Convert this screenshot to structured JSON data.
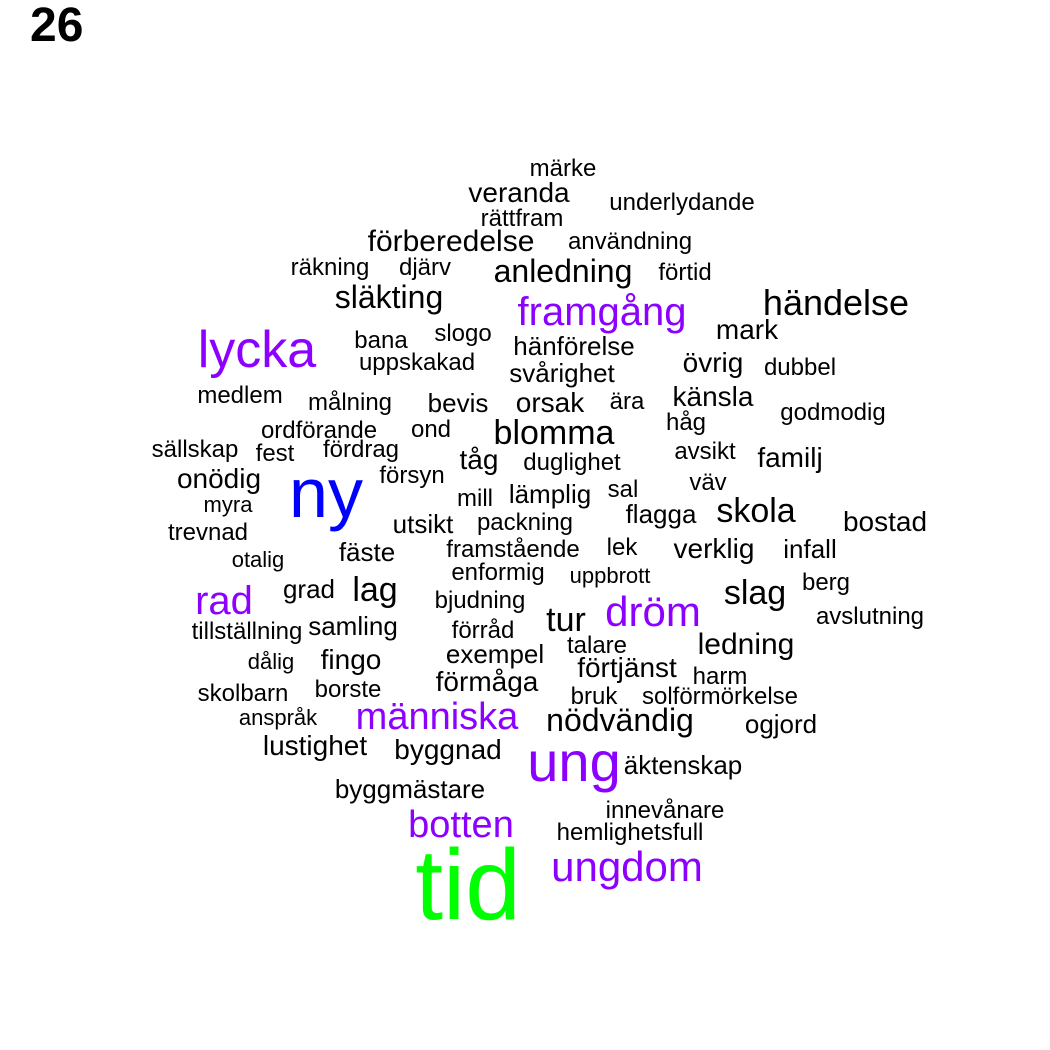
{
  "page_number": "26",
  "palette": {
    "tier_small": "#000000",
    "tier_medium": "#8b00ff",
    "tier_large": "#0000ff",
    "tier_largest": "#00ff00"
  },
  "words": [
    {
      "text": "tid",
      "tier": "tier_largest"
    },
    {
      "text": "ny",
      "tier": "tier_large"
    },
    {
      "text": "ung",
      "tier": "tier_medium"
    },
    {
      "text": "lycka",
      "tier": "tier_medium"
    },
    {
      "text": "ungdom",
      "tier": "tier_medium"
    },
    {
      "text": "dröm",
      "tier": "tier_medium"
    },
    {
      "text": "framgång",
      "tier": "tier_medium"
    },
    {
      "text": "människa",
      "tier": "tier_medium"
    },
    {
      "text": "botten",
      "tier": "tier_medium"
    },
    {
      "text": "rad",
      "tier": "tier_medium"
    },
    {
      "text": "händelse",
      "tier": "tier_small"
    },
    {
      "text": "anledning",
      "tier": "tier_small"
    },
    {
      "text": "släkting",
      "tier": "tier_small"
    },
    {
      "text": "förberedelse",
      "tier": "tier_small"
    },
    {
      "text": "nödvändig",
      "tier": "tier_small"
    },
    {
      "text": "blomma",
      "tier": "tier_small"
    },
    {
      "text": "skola",
      "tier": "tier_small"
    },
    {
      "text": "slag",
      "tier": "tier_small"
    },
    {
      "text": "lag",
      "tier": "tier_small"
    },
    {
      "text": "tur",
      "tier": "tier_small"
    },
    {
      "text": "ledning",
      "tier": "tier_small"
    },
    {
      "text": "bostad",
      "tier": "tier_small"
    },
    {
      "text": "familj",
      "tier": "tier_small"
    },
    {
      "text": "känsla",
      "tier": "tier_small"
    },
    {
      "text": "övrig",
      "tier": "tier_small"
    },
    {
      "text": "förmåga",
      "tier": "tier_small"
    },
    {
      "text": "veranda",
      "tier": "tier_small"
    },
    {
      "text": "orsak",
      "tier": "tier_small"
    },
    {
      "text": "mark",
      "tier": "tier_small"
    },
    {
      "text": "förtjänst",
      "tier": "tier_small"
    },
    {
      "text": "fingo",
      "tier": "tier_small"
    },
    {
      "text": "byggnad",
      "tier": "tier_small"
    },
    {
      "text": "lustighet",
      "tier": "tier_small"
    },
    {
      "text": "verklig",
      "tier": "tier_small"
    },
    {
      "text": "hänförelse",
      "tier": "tier_small"
    },
    {
      "text": "svårighet",
      "tier": "tier_small"
    },
    {
      "text": "tåg",
      "tier": "tier_small"
    },
    {
      "text": "onödig",
      "tier": "tier_small"
    },
    {
      "text": "utsikt",
      "tier": "tier_small"
    },
    {
      "text": "fäste",
      "tier": "tier_small"
    },
    {
      "text": "grad",
      "tier": "tier_small"
    },
    {
      "text": "exempel",
      "tier": "tier_small"
    },
    {
      "text": "byggmästare",
      "tier": "tier_small"
    },
    {
      "text": "infall",
      "tier": "tier_small"
    },
    {
      "text": "flagga",
      "tier": "tier_small"
    },
    {
      "text": "lämplig",
      "tier": "tier_small"
    },
    {
      "text": "bevis",
      "tier": "tier_small"
    },
    {
      "text": "samling",
      "tier": "tier_small"
    },
    {
      "text": "bjudning",
      "tier": "tier_small"
    },
    {
      "text": "hemlighetsfull",
      "tier": "tier_small"
    },
    {
      "text": "äktenskap",
      "tier": "tier_small"
    },
    {
      "text": "borste",
      "tier": "tier_small"
    },
    {
      "text": "duglighet",
      "tier": "tier_small"
    },
    {
      "text": "målning",
      "tier": "tier_small"
    },
    {
      "text": "enformig",
      "tier": "tier_small"
    },
    {
      "text": "slogo",
      "tier": "tier_small"
    },
    {
      "text": "märke",
      "tier": "tier_small"
    },
    {
      "text": "bana",
      "tier": "tier_small"
    },
    {
      "text": "ogjord",
      "tier": "tier_small"
    },
    {
      "text": "fest",
      "tier": "tier_small"
    },
    {
      "text": "uppskakad",
      "tier": "tier_small"
    },
    {
      "text": "medlem",
      "tier": "tier_small"
    },
    {
      "text": "mill",
      "tier": "tier_small"
    },
    {
      "text": "djärv",
      "tier": "tier_small"
    },
    {
      "text": "räkning",
      "tier": "tier_small"
    },
    {
      "text": "talare",
      "tier": "tier_small"
    },
    {
      "text": "lek",
      "tier": "tier_small"
    },
    {
      "text": "förråd",
      "tier": "tier_small"
    },
    {
      "text": "fördrag",
      "tier": "tier_small"
    },
    {
      "text": "försyn",
      "tier": "tier_small"
    },
    {
      "text": "trevnad",
      "tier": "tier_small"
    },
    {
      "text": "skolbarn",
      "tier": "tier_small"
    },
    {
      "text": "användning",
      "tier": "tier_small"
    },
    {
      "text": "rättfram",
      "tier": "tier_small"
    },
    {
      "text": "underlydande",
      "tier": "tier_small"
    },
    {
      "text": "förtid",
      "tier": "tier_small"
    },
    {
      "text": "dubbel",
      "tier": "tier_small"
    },
    {
      "text": "godmodig",
      "tier": "tier_small"
    },
    {
      "text": "håg",
      "tier": "tier_small"
    },
    {
      "text": "avsikt",
      "tier": "tier_small"
    },
    {
      "text": "väv",
      "tier": "tier_small"
    },
    {
      "text": "sal",
      "tier": "tier_small"
    },
    {
      "text": "ära",
      "tier": "tier_small"
    },
    {
      "text": "ond",
      "tier": "tier_small"
    },
    {
      "text": "ordförande",
      "tier": "tier_small"
    },
    {
      "text": "sällskap",
      "tier": "tier_small"
    },
    {
      "text": "myra",
      "tier": "tier_small"
    },
    {
      "text": "otalig",
      "tier": "tier_small"
    },
    {
      "text": "packning",
      "tier": "tier_small"
    },
    {
      "text": "framstående",
      "tier": "tier_small"
    },
    {
      "text": "uppbrott",
      "tier": "tier_small"
    },
    {
      "text": "berg",
      "tier": "tier_small"
    },
    {
      "text": "avslutning",
      "tier": "tier_small"
    },
    {
      "text": "tillställning",
      "tier": "tier_small"
    },
    {
      "text": "dålig",
      "tier": "tier_small"
    },
    {
      "text": "anspråk",
      "tier": "tier_small"
    },
    {
      "text": "harm",
      "tier": "tier_small"
    },
    {
      "text": "bruk",
      "tier": "tier_small"
    },
    {
      "text": "solförmörkelse",
      "tier": "tier_small"
    },
    {
      "text": "innevånare",
      "tier": "tier_small"
    }
  ]
}
